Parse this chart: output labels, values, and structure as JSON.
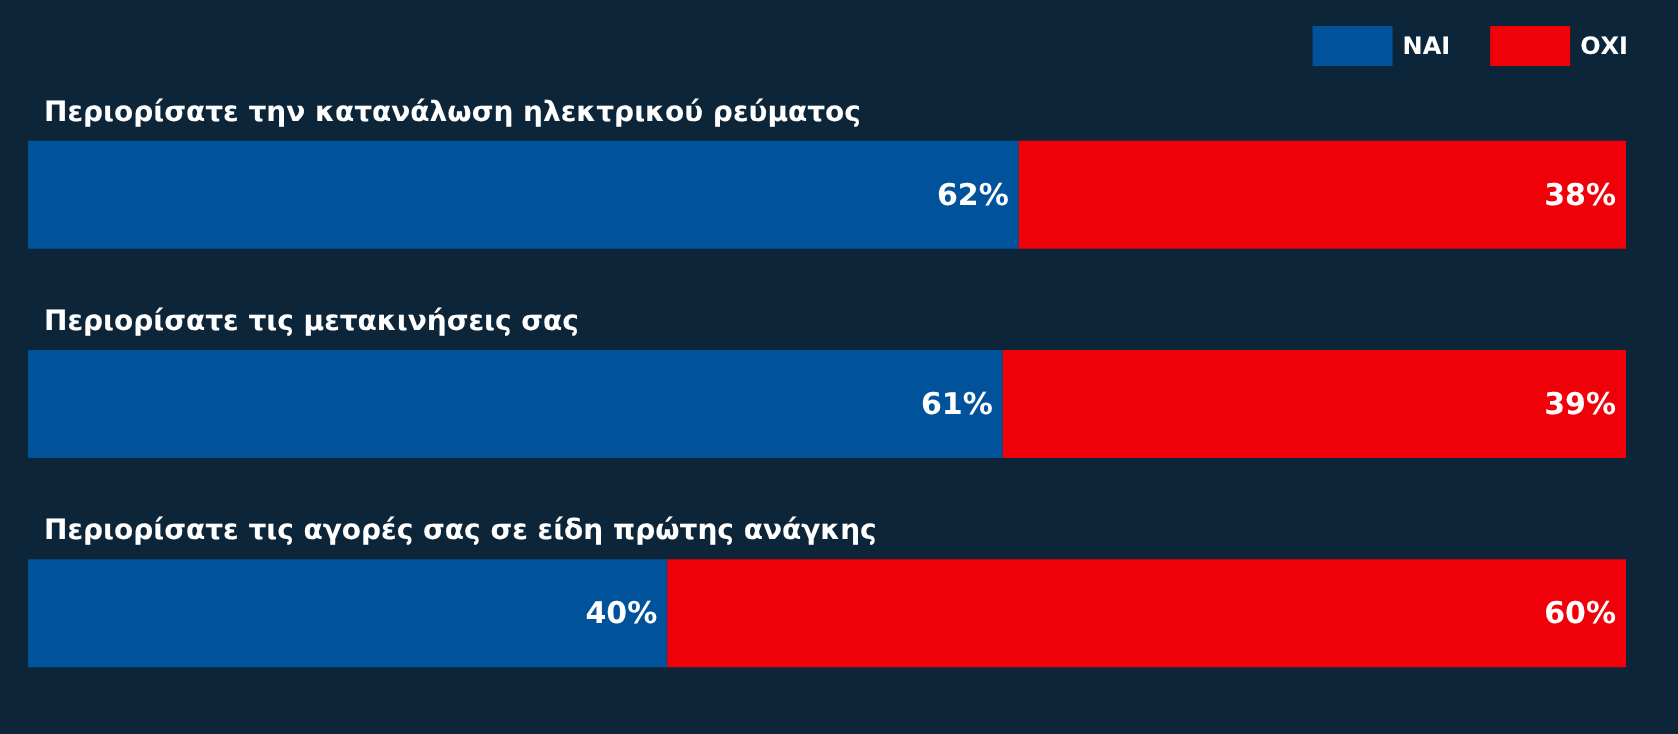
{
  "chart_data": {
    "type": "bar",
    "orientation": "horizontal",
    "stacked": true,
    "grid": false,
    "legend": "top right",
    "categories": [
      "Περιορίσατε την κατανάλωση ηλεκτρικού ρεύματος",
      "Περιορίσατε τις μετακινήσεις σας",
      "Περιορίσατε τις αγορές σας σε είδη πρώτης ανάγκης"
    ],
    "series": [
      {
        "name": "ΝΑΙ",
        "color": "#00529b",
        "values": [
          62,
          61,
          40
        ],
        "value_labels": [
          "62%",
          "61%",
          "40%"
        ]
      },
      {
        "name": "ΟΧΙ",
        "color": "#f00008",
        "values": [
          38,
          39,
          60
        ],
        "value_labels": [
          "38%",
          "39%",
          "60%"
        ]
      }
    ]
  }
}
